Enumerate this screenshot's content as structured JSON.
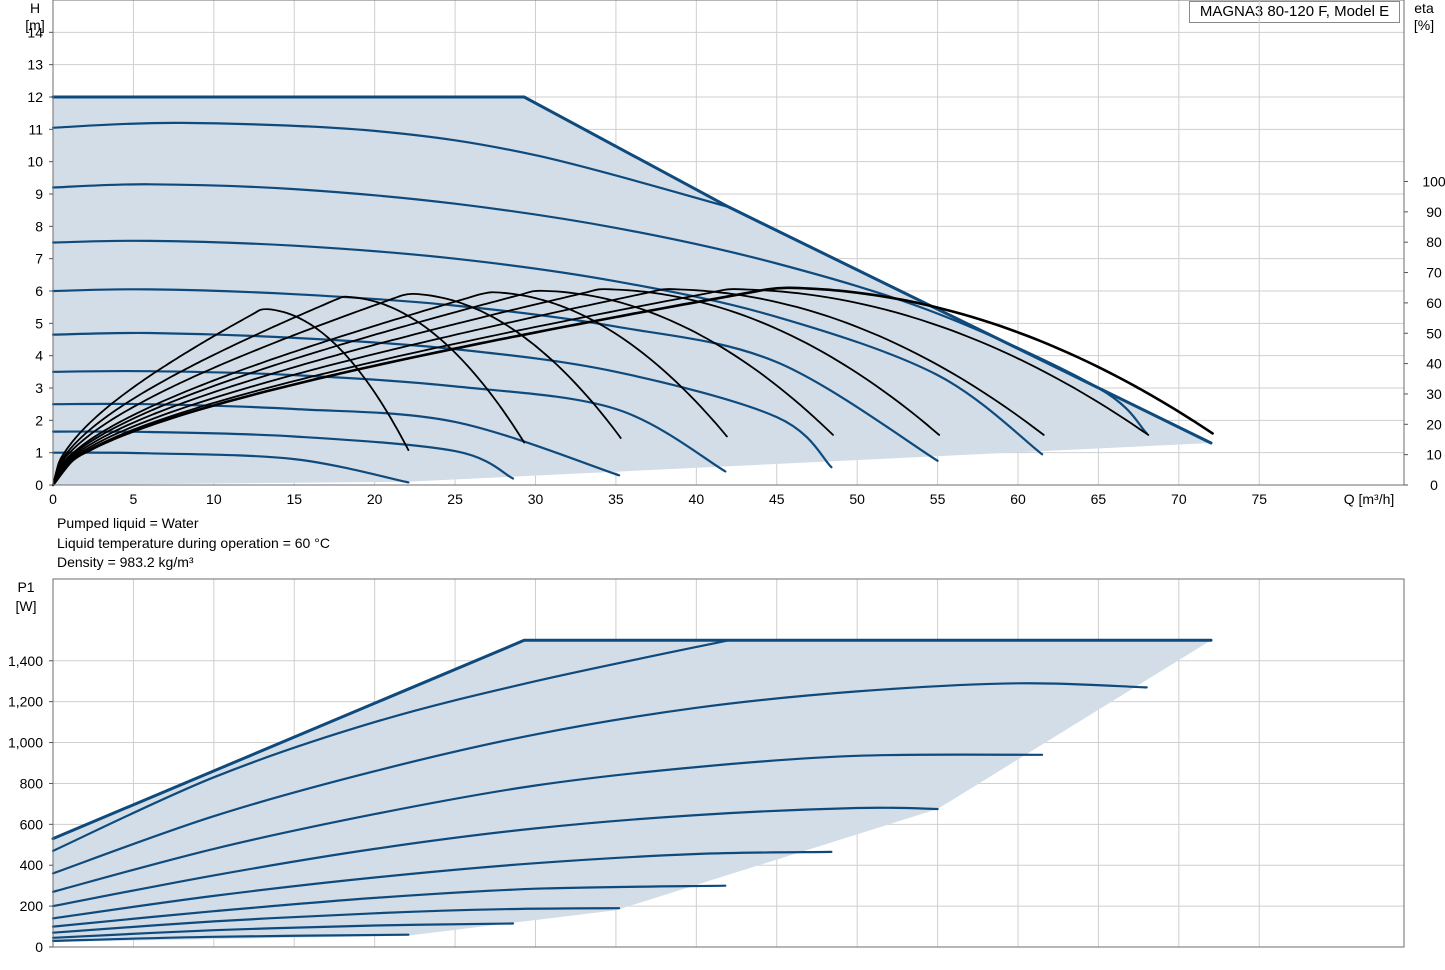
{
  "title_box": "MAGNA3 80-120 F, Model E",
  "conditions": [
    "Pumped liquid = Water",
    "Liquid temperature during operation = 60 °C",
    "Density = 983.2 kg/m³"
  ],
  "chart_data": [
    {
      "type": "line",
      "name": "head",
      "axes": {
        "left": {
          "label_lines": [
            "H",
            "[m]"
          ],
          "range": [
            0,
            15
          ],
          "ticks": [
            0,
            1,
            2,
            3,
            4,
            5,
            6,
            7,
            8,
            9,
            10,
            11,
            12,
            13,
            14
          ]
        },
        "right": {
          "label_lines": [
            "eta",
            "[%]"
          ],
          "range": [
            0,
            100
          ],
          "ticks": [
            0,
            10,
            20,
            30,
            40,
            50,
            60,
            70,
            80,
            90,
            100
          ]
        },
        "x": {
          "label": "Q [m³/h]",
          "range": [
            0,
            84
          ],
          "ticks": [
            0,
            5,
            10,
            15,
            20,
            25,
            30,
            35,
            40,
            45,
            50,
            55,
            60,
            65,
            70,
            75
          ]
        }
      },
      "envelope": [
        [
          0,
          12
        ],
        [
          29.3,
          12
        ],
        [
          42,
          8.6
        ],
        [
          72,
          1.3
        ],
        [
          22,
          0.1
        ],
        [
          0,
          0
        ]
      ],
      "series": [
        {
          "kind": "max",
          "x": [
            0,
            29.3,
            42,
            72
          ],
          "y": [
            12,
            12,
            8.6,
            1.3
          ]
        },
        {
          "x": [
            0,
            8,
            20,
            30,
            42
          ],
          "y": [
            11.05,
            11.2,
            10.95,
            10.2,
            8.6
          ]
        },
        {
          "x": [
            0,
            6,
            15,
            25,
            35,
            45,
            55,
            65,
            68
          ],
          "y": [
            9.2,
            9.3,
            9.15,
            8.7,
            7.95,
            6.85,
            5.3,
            3.0,
            1.6
          ]
        },
        {
          "x": [
            0,
            6,
            15,
            25,
            35,
            45,
            55,
            61.5
          ],
          "y": [
            7.5,
            7.55,
            7.4,
            7.0,
            6.3,
            5.2,
            3.4,
            0.95
          ]
        },
        {
          "x": [
            0,
            6,
            15,
            25,
            35,
            45,
            55
          ],
          "y": [
            6.0,
            6.05,
            5.9,
            5.55,
            4.9,
            3.8,
            0.75
          ]
        },
        {
          "x": [
            0,
            6,
            15,
            25,
            35,
            45,
            48.4
          ],
          "y": [
            4.65,
            4.7,
            4.55,
            4.2,
            3.5,
            2.1,
            0.55
          ]
        },
        {
          "x": [
            0,
            6,
            15,
            25,
            35,
            41.8
          ],
          "y": [
            3.5,
            3.52,
            3.4,
            3.05,
            2.35,
            0.42
          ]
        },
        {
          "x": [
            0,
            6,
            15,
            25,
            35.2
          ],
          "y": [
            2.5,
            2.5,
            2.35,
            1.95,
            0.3
          ]
        },
        {
          "x": [
            0,
            6,
            15,
            25,
            28.6
          ],
          "y": [
            1.65,
            1.64,
            1.5,
            1.05,
            0.2
          ]
        },
        {
          "x": [
            0,
            6,
            15,
            22.1
          ],
          "y": [
            1.0,
            0.98,
            0.8,
            0.08
          ]
        }
      ],
      "efficiency": [
        {
          "peak_q": 45,
          "peak": 65,
          "end_q": 72.1,
          "end": 17
        },
        {
          "peak_q": 42,
          "peak": 64.5,
          "end_q": 68.1,
          "end": 16.5
        },
        {
          "peak_q": 38,
          "peak": 64.5,
          "end_q": 61.6,
          "end": 16.5
        },
        {
          "peak_q": 34,
          "peak": 64.5,
          "end_q": 55.1,
          "end": 16.5
        },
        {
          "peak_q": 30,
          "peak": 64,
          "end_q": 48.5,
          "end": 16.5
        },
        {
          "peak_q": 27,
          "peak": 63.5,
          "end_q": 41.9,
          "end": 16
        },
        {
          "peak_q": 22,
          "peak": 63,
          "end_q": 35.3,
          "end": 15.5
        },
        {
          "peak_q": 18,
          "peak": 62,
          "end_q": 29.3,
          "end": 14
        },
        {
          "peak_q": 13,
          "peak": 58,
          "end_q": 22.1,
          "end": 11.5
        }
      ]
    },
    {
      "type": "line",
      "name": "power",
      "axes": {
        "left": {
          "label_lines": [
            "P1",
            "[W]"
          ],
          "range": [
            0,
            1800
          ],
          "ticks": [
            0,
            200,
            400,
            600,
            800,
            1000,
            1200,
            1400
          ],
          "tick_labels": [
            "0",
            "200",
            "400",
            "600",
            "800",
            "1,000",
            "1,200",
            "1,400"
          ]
        },
        "x": {
          "range": [
            0,
            84
          ]
        }
      },
      "envelope": [
        [
          0,
          530
        ],
        [
          29.3,
          1500
        ],
        [
          72,
          1500
        ],
        [
          55,
          675
        ],
        [
          35,
          180
        ],
        [
          22,
          55
        ],
        [
          0,
          25
        ]
      ],
      "series": [
        {
          "kind": "max",
          "x": [
            0,
            29.3,
            72
          ],
          "y": [
            530,
            1500,
            1500
          ]
        },
        {
          "x": [
            0,
            10,
            20,
            30,
            42
          ],
          "y": [
            470,
            830,
            1100,
            1300,
            1500
          ]
        },
        {
          "x": [
            0,
            10,
            20,
            30,
            40,
            50,
            60,
            68
          ],
          "y": [
            360,
            640,
            860,
            1040,
            1170,
            1250,
            1290,
            1270
          ]
        },
        {
          "x": [
            0,
            10,
            20,
            30,
            40,
            50,
            61.5
          ],
          "y": [
            270,
            480,
            650,
            790,
            880,
            935,
            940
          ]
        },
        {
          "x": [
            0,
            10,
            20,
            30,
            40,
            50,
            55
          ],
          "y": [
            200,
            350,
            480,
            580,
            645,
            680,
            675
          ]
        },
        {
          "x": [
            0,
            10,
            20,
            30,
            40,
            48.4
          ],
          "y": [
            140,
            250,
            340,
            410,
            455,
            465
          ]
        },
        {
          "x": [
            0,
            10,
            20,
            30,
            41.8
          ],
          "y": [
            100,
            175,
            240,
            285,
            300
          ]
        },
        {
          "x": [
            0,
            10,
            20,
            28,
            35.2
          ],
          "y": [
            70,
            125,
            165,
            185,
            190
          ]
        },
        {
          "x": [
            0,
            10,
            20,
            28.6
          ],
          "y": [
            45,
            82,
            105,
            115
          ]
        },
        {
          "x": [
            0,
            10,
            22.1
          ],
          "y": [
            30,
            50,
            60
          ]
        }
      ]
    }
  ]
}
